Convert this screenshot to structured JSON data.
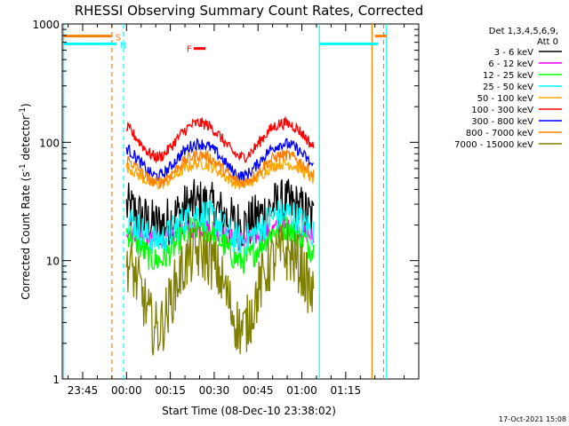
{
  "chart_data": {
    "type": "line",
    "title": "RHESSI Observing Summary Count Rates, Corrected",
    "xlabel": "Start Time (08-Dec-10 23:38:02)",
    "ylabel_main": "Corrected Count Rate (s",
    "ylabel_sup1": "-1",
    "ylabel_mid": " detector",
    "ylabel_sup2": "-1",
    "ylabel_end": ")",
    "yscale": "log",
    "ylim": [
      1,
      1000
    ],
    "xlim_minutes": [
      -22,
      100
    ],
    "y_ticks": [
      {
        "value": 1,
        "label": "1"
      },
      {
        "value": 10,
        "label": "10"
      },
      {
        "value": 100,
        "label": "100"
      },
      {
        "value": 1000,
        "label": "1000"
      }
    ],
    "x_ticks": [
      {
        "minute": -15,
        "label": "23:45"
      },
      {
        "minute": 0,
        "label": "00:00"
      },
      {
        "minute": 15,
        "label": "00:15"
      },
      {
        "minute": 30,
        "label": "00:30"
      },
      {
        "minute": 45,
        "label": "00:45"
      },
      {
        "minute": 60,
        "label": "01:00"
      },
      {
        "minute": 75,
        "label": "01:15"
      }
    ],
    "legend_header": [
      "Det 1,3,4,5,6,9,",
      "Att 0"
    ],
    "legend_placement": "right",
    "series": [
      {
        "name": "3 - 6 keV",
        "color": "#000000",
        "base": 20,
        "amp": 10,
        "noise": 0.22
      },
      {
        "name": "6 - 12 keV",
        "color": "#ff00ff",
        "base": 15,
        "amp": 4,
        "noise": 0.08
      },
      {
        "name": "12 - 25 keV",
        "color": "#00ff00",
        "base": 10,
        "amp": 9,
        "noise": 0.12
      },
      {
        "name": "25 - 50 keV",
        "color": "#00ffff",
        "base": 15,
        "amp": 10,
        "noise": 0.14
      },
      {
        "name": "50 - 100 keV",
        "color": "#ffa500",
        "base": 44,
        "amp": 22,
        "noise": 0.05
      },
      {
        "name": "100 - 300 keV",
        "color": "#ff0000",
        "base": 75,
        "amp": 70,
        "noise": 0.05
      },
      {
        "name": "300 - 800 keV",
        "color": "#0000ff",
        "base": 52,
        "amp": 45,
        "noise": 0.05
      },
      {
        "name": "800 - 7000 keV",
        "color": "#ff8000",
        "base": 46,
        "amp": 32,
        "noise": 0.05
      },
      {
        "name": "7000 - 15000 keV",
        "color": "#808000",
        "base": 2.6,
        "amp": 9,
        "noise": 0.25
      }
    ],
    "segments": [
      {
        "start": 0,
        "end": 64
      },
      {
        "start": -4.2,
        "end": -3.6
      }
    ],
    "flags": [
      {
        "label": "S",
        "color": "#ff8000",
        "y": 790,
        "ranges": [
          [
            -22,
            -5
          ],
          [
            85,
            89
          ]
        ]
      },
      {
        "label": "N",
        "color": "#00ffff",
        "y": 680,
        "ranges": [
          [
            -22,
            -3.5
          ],
          [
            66,
            86
          ]
        ]
      }
    ],
    "vlines": [
      {
        "minute": -21.5,
        "color": "#00ffff",
        "dashed": false
      },
      {
        "minute": -5,
        "color": "#ff8000",
        "dashed": true
      },
      {
        "minute": -1,
        "color": "#00ffff",
        "dashed": true
      },
      {
        "minute": 66,
        "color": "#00ffff",
        "dashed": false
      },
      {
        "minute": 84,
        "color": "#ff8000",
        "dashed": false
      },
      {
        "minute": 88,
        "color": "#ff8000",
        "dashed": true
      },
      {
        "minute": 89,
        "color": "#00ffff",
        "dashed": false
      }
    ],
    "flare_marker": {
      "label": "F",
      "color": "#ff0000",
      "minute_start": 23,
      "minute_end": 27,
      "y": 620
    },
    "footer_date": "17-Oct-2021 15:08"
  }
}
